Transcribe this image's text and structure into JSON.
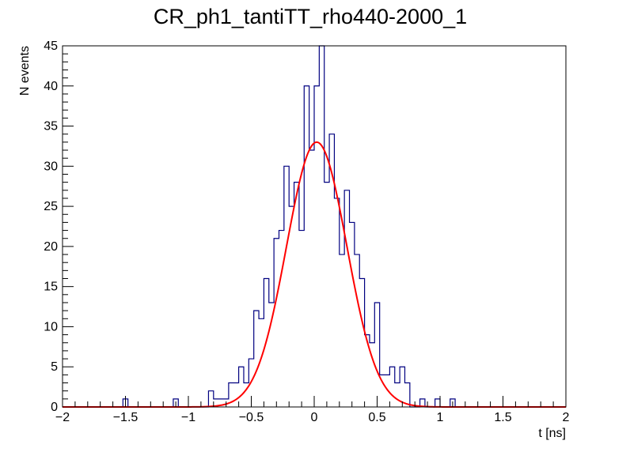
{
  "chart_data": {
    "type": "bar",
    "title": "CR_ph1_tantiTT_rho440-2000_1",
    "xlabel": "t [ns]",
    "ylabel": "N events",
    "xlim": [
      -2,
      2
    ],
    "ylim": [
      0,
      45
    ],
    "x_ticks": [
      "−2",
      "−1.5",
      "−1",
      "−0.5",
      "0",
      "0.5",
      "1",
      "1.5",
      "2"
    ],
    "y_ticks": [
      "0",
      "5",
      "10",
      "15",
      "20",
      "25",
      "30",
      "35",
      "40",
      "45"
    ],
    "grid": false,
    "legend": "none",
    "histogram": {
      "bin_width": 0.04,
      "color": "#000080",
      "bins": [
        {
          "x": -1.52,
          "y": 1
        },
        {
          "x": -1.12,
          "y": 1
        },
        {
          "x": -0.84,
          "y": 2
        },
        {
          "x": -0.8,
          "y": 1
        },
        {
          "x": -0.76,
          "y": 1
        },
        {
          "x": -0.72,
          "y": 1
        },
        {
          "x": -0.68,
          "y": 3
        },
        {
          "x": -0.64,
          "y": 3
        },
        {
          "x": -0.6,
          "y": 5
        },
        {
          "x": -0.56,
          "y": 3
        },
        {
          "x": -0.52,
          "y": 6
        },
        {
          "x": -0.48,
          "y": 12
        },
        {
          "x": -0.44,
          "y": 11
        },
        {
          "x": -0.4,
          "y": 16
        },
        {
          "x": -0.36,
          "y": 13
        },
        {
          "x": -0.32,
          "y": 21
        },
        {
          "x": -0.28,
          "y": 22
        },
        {
          "x": -0.24,
          "y": 30
        },
        {
          "x": -0.2,
          "y": 25
        },
        {
          "x": -0.16,
          "y": 28
        },
        {
          "x": -0.12,
          "y": 22
        },
        {
          "x": -0.08,
          "y": 40
        },
        {
          "x": -0.04,
          "y": 32
        },
        {
          "x": 0.0,
          "y": 40
        },
        {
          "x": 0.04,
          "y": 45
        },
        {
          "x": 0.08,
          "y": 28
        },
        {
          "x": 0.12,
          "y": 34
        },
        {
          "x": 0.16,
          "y": 26
        },
        {
          "x": 0.2,
          "y": 19
        },
        {
          "x": 0.24,
          "y": 27
        },
        {
          "x": 0.28,
          "y": 23
        },
        {
          "x": 0.32,
          "y": 19
        },
        {
          "x": 0.36,
          "y": 16
        },
        {
          "x": 0.4,
          "y": 9
        },
        {
          "x": 0.44,
          "y": 8
        },
        {
          "x": 0.48,
          "y": 13
        },
        {
          "x": 0.52,
          "y": 4
        },
        {
          "x": 0.56,
          "y": 4
        },
        {
          "x": 0.6,
          "y": 5
        },
        {
          "x": 0.64,
          "y": 3
        },
        {
          "x": 0.68,
          "y": 5
        },
        {
          "x": 0.72,
          "y": 3
        },
        {
          "x": 0.84,
          "y": 1
        },
        {
          "x": 0.96,
          "y": 1
        },
        {
          "x": 1.08,
          "y": 1
        }
      ]
    },
    "fit": {
      "type": "gaussian",
      "color": "#ff0000",
      "amplitude": 33,
      "mean": 0.02,
      "sigma": 0.24,
      "x_range": [
        -2,
        2
      ]
    }
  }
}
